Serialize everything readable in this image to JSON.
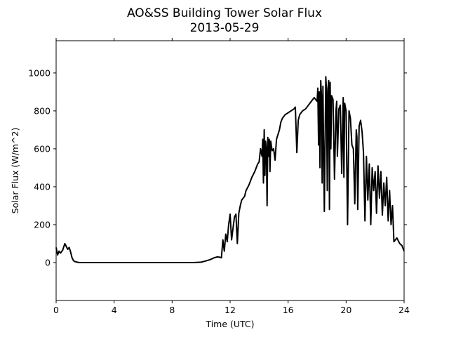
{
  "chart_data": {
    "type": "line",
    "title": "AO&SS Building Tower Solar Flux",
    "subtitle": "2013-05-29",
    "xlabel": "Time (UTC)",
    "ylabel": "Solar Flux (W/m^2)",
    "xlim": [
      0,
      24
    ],
    "ylim": [
      -200,
      1170
    ],
    "xticks": [
      0,
      4,
      8,
      12,
      16,
      20,
      24
    ],
    "yticks": [
      0,
      200,
      400,
      600,
      800,
      1000
    ],
    "grid": false,
    "legend": "none",
    "line_color": "#000000",
    "series": [
      {
        "x": [
          0,
          0.1,
          0.2,
          0.3,
          0.45,
          0.6,
          0.7,
          0.8,
          0.9,
          1.0,
          1.1,
          1.2,
          1.3,
          1.45,
          1.6,
          1.8,
          2.0,
          2.5,
          3,
          4,
          5,
          6,
          7,
          8,
          9,
          9.5,
          10.0,
          10.3,
          10.6,
          10.9,
          11.1,
          11.3,
          11.4,
          11.5,
          11.6,
          11.7,
          11.8,
          11.9,
          12.0,
          12.1,
          12.2,
          12.3,
          12.4,
          12.5,
          12.6,
          12.7,
          12.8,
          12.9,
          13.0,
          13.1,
          13.3,
          13.5,
          13.7,
          13.9,
          14.0,
          14.1,
          14.2,
          14.25,
          14.3,
          14.35,
          14.4,
          14.45,
          14.5,
          14.55,
          14.6,
          14.65,
          14.7,
          14.75,
          14.8,
          14.9,
          15.0,
          15.1,
          15.2,
          15.4,
          15.5,
          15.6,
          15.8,
          16.0,
          16.2,
          16.4,
          16.5,
          16.6,
          16.7,
          16.8,
          17.0,
          17.2,
          17.4,
          17.6,
          17.8,
          17.9,
          18.0,
          18.05,
          18.1,
          18.15,
          18.2,
          18.25,
          18.3,
          18.35,
          18.4,
          18.5,
          18.6,
          18.65,
          18.7,
          18.75,
          18.8,
          18.85,
          18.9,
          18.95,
          19.0,
          19.1,
          19.2,
          19.3,
          19.35,
          19.4,
          19.5,
          19.6,
          19.7,
          19.8,
          19.85,
          19.9,
          20.0,
          20.1,
          20.2,
          20.3,
          20.4,
          20.5,
          20.6,
          20.7,
          20.75,
          20.8,
          20.9,
          21.0,
          21.1,
          21.2,
          21.3,
          21.4,
          21.5,
          21.6,
          21.7,
          21.8,
          21.9,
          22.0,
          22.1,
          22.2,
          22.3,
          22.4,
          22.5,
          22.6,
          22.7,
          22.8,
          22.9,
          23.0,
          23.1,
          23.2,
          23.3,
          23.5,
          23.7,
          23.85,
          24.0
        ],
        "y": [
          80,
          40,
          60,
          50,
          65,
          100,
          85,
          70,
          80,
          55,
          25,
          10,
          5,
          2,
          0,
          0,
          0,
          0,
          0,
          0,
          0,
          0,
          0,
          0,
          0,
          0,
          2,
          8,
          15,
          25,
          30,
          28,
          25,
          120,
          60,
          150,
          110,
          200,
          255,
          120,
          180,
          240,
          255,
          100,
          260,
          300,
          330,
          340,
          350,
          380,
          410,
          450,
          480,
          520,
          530,
          600,
          560,
          650,
          420,
          700,
          460,
          640,
          600,
          300,
          660,
          560,
          650,
          480,
          640,
          590,
          600,
          540,
          650,
          700,
          740,
          760,
          780,
          790,
          800,
          810,
          820,
          580,
          750,
          780,
          800,
          810,
          830,
          850,
          870,
          860,
          850,
          920,
          620,
          900,
          500,
          960,
          880,
          420,
          930,
          270,
          980,
          900,
          380,
          920,
          960,
          280,
          950,
          600,
          880,
          860,
          440,
          800,
          850,
          560,
          810,
          830,
          470,
          870,
          450,
          840,
          800,
          200,
          800,
          760,
          620,
          600,
          310,
          700,
          660,
          280,
          720,
          750,
          690,
          580,
          220,
          560,
          330,
          520,
          200,
          500,
          380,
          480,
          260,
          510,
          340,
          480,
          250,
          420,
          300,
          450,
          220,
          380,
          200,
          300,
          110,
          130,
          100,
          90,
          60
        ]
      }
    ]
  }
}
